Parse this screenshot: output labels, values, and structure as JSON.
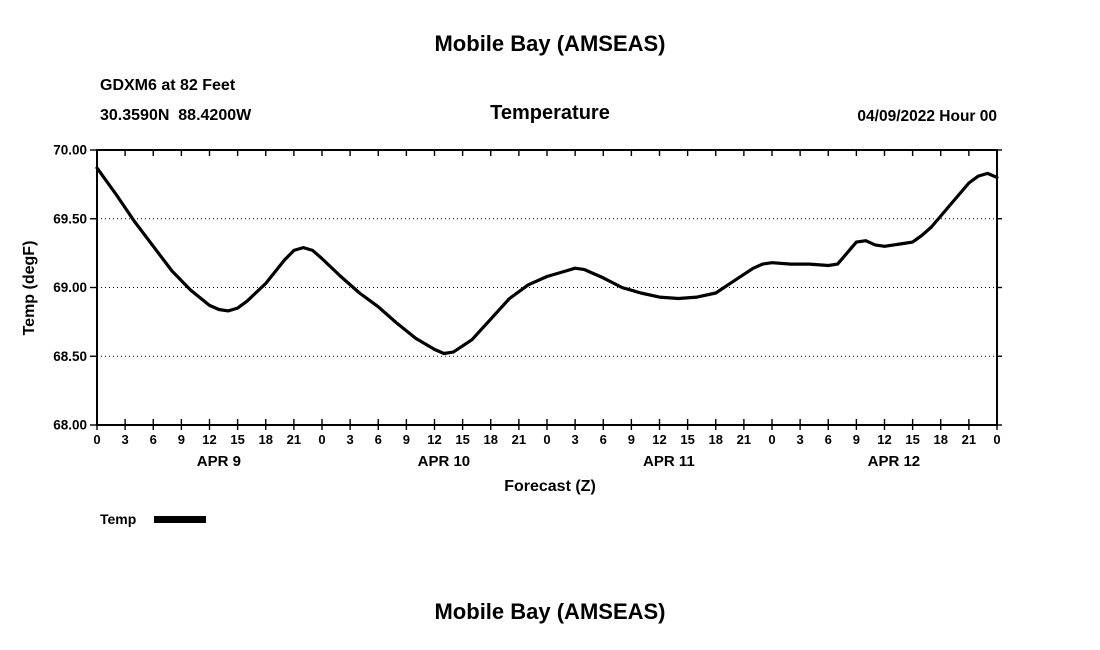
{
  "page": {
    "top_title": "Mobile Bay (AMSEAS)",
    "bottom_title": "Mobile Bay (AMSEAS)"
  },
  "header": {
    "station": "GDXM6 at 82 Feet",
    "coordinates": "30.3590N  88.4200W",
    "panel_title": "Temperature",
    "run_date": "04/09/2022 Hour 00"
  },
  "legend": {
    "label": "Temp"
  },
  "chart_data": {
    "type": "line",
    "title": "Temperature",
    "xlabel": "Forecast (Z)",
    "ylabel": "Temp (degF)",
    "ylim": [
      68.0,
      70.0
    ],
    "x_range_hours": [
      0,
      96
    ],
    "x_tick_interval_hours": 3,
    "grid_style": "dotted-horizontal",
    "legend_position": "below-left",
    "y_ticks": [
      68.0,
      68.5,
      69.0,
      69.5,
      70.0
    ],
    "y_tick_labels": [
      "68.00",
      "68.50",
      "69.00",
      "69.50",
      "70.00"
    ],
    "x_tick_labels": [
      "0",
      "3",
      "6",
      "9",
      "12",
      "15",
      "18",
      "21",
      "0",
      "3",
      "6",
      "9",
      "12",
      "15",
      "18",
      "21",
      "0",
      "3",
      "6",
      "9",
      "12",
      "15",
      "18",
      "21",
      "0",
      "3",
      "6",
      "9",
      "12",
      "15",
      "18",
      "21",
      "0"
    ],
    "day_labels": [
      {
        "label": "APR 9",
        "center_hour": 13
      },
      {
        "label": "APR 10",
        "center_hour": 37
      },
      {
        "label": "APR 11",
        "center_hour": 61
      },
      {
        "label": "APR 12",
        "center_hour": 85
      }
    ],
    "series": [
      {
        "name": "Temp",
        "color": "#000000",
        "x_hours": [
          0,
          2,
          4,
          6,
          8,
          10,
          12,
          13,
          14,
          15,
          16,
          18,
          20,
          21,
          22,
          23,
          24,
          26,
          28,
          30,
          32,
          34,
          36,
          37,
          38,
          40,
          42,
          44,
          46,
          48,
          50,
          51,
          52,
          54,
          56,
          58,
          60,
          62,
          64,
          66,
          68,
          70,
          71,
          72,
          74,
          76,
          78,
          79,
          80,
          81,
          82,
          83,
          84,
          85,
          86,
          87,
          88,
          89,
          90,
          91,
          92,
          93,
          94,
          95,
          96
        ],
        "values": [
          69.87,
          69.68,
          69.48,
          69.3,
          69.12,
          68.98,
          68.87,
          68.84,
          68.83,
          68.85,
          68.9,
          69.03,
          69.2,
          69.27,
          69.29,
          69.27,
          69.21,
          69.08,
          68.96,
          68.86,
          68.74,
          68.63,
          68.55,
          68.52,
          68.53,
          68.62,
          68.77,
          68.92,
          69.02,
          69.08,
          69.12,
          69.14,
          69.13,
          69.07,
          69.0,
          68.96,
          68.93,
          68.92,
          68.93,
          68.96,
          69.05,
          69.14,
          69.17,
          69.18,
          69.17,
          69.17,
          69.16,
          69.17,
          69.25,
          69.33,
          69.34,
          69.31,
          69.3,
          69.31,
          69.32,
          69.33,
          69.38,
          69.44,
          69.52,
          69.6,
          69.68,
          69.76,
          69.81,
          69.83,
          69.8
        ]
      }
    ]
  }
}
